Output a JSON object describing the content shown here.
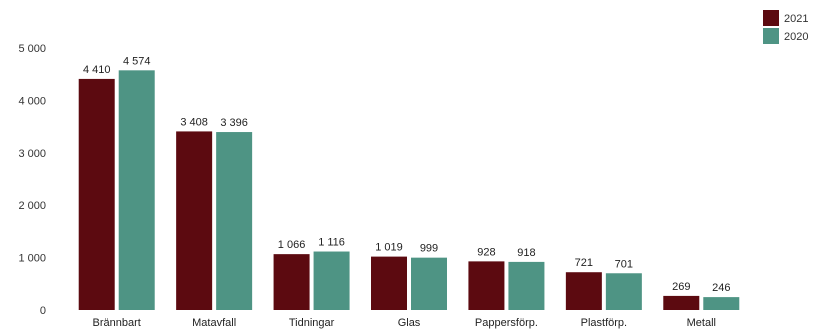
{
  "chart_data": {
    "type": "bar",
    "title": "",
    "xlabel": "",
    "ylabel": "",
    "ylim": [
      0,
      5000
    ],
    "yticks": [
      0,
      1000,
      2000,
      3000,
      4000,
      5000
    ],
    "ytick_labels": [
      "0",
      "1 000",
      "2 000",
      "3 000",
      "4 000",
      "5 000"
    ],
    "grid": false,
    "legend_position": "top-right",
    "categories": [
      "Brännbart",
      "Matavfall",
      "Tidningar",
      "Glas",
      "Pappersförp.",
      "Plastförp.",
      "Metall"
    ],
    "series": [
      {
        "name": "2021",
        "color": "#5c0a10",
        "values": [
          4410,
          3408,
          1066,
          1019,
          928,
          721,
          269
        ],
        "labels": [
          "4 410",
          "3 408",
          "1 066",
          "1 019",
          "928",
          "721",
          "269"
        ]
      },
      {
        "name": "2020",
        "color": "#4e9484",
        "values": [
          4574,
          3396,
          1116,
          999,
          918,
          701,
          246
        ],
        "labels": [
          "4 574",
          "3 396",
          "1 116",
          "999",
          "918",
          "701",
          "246"
        ]
      }
    ]
  }
}
